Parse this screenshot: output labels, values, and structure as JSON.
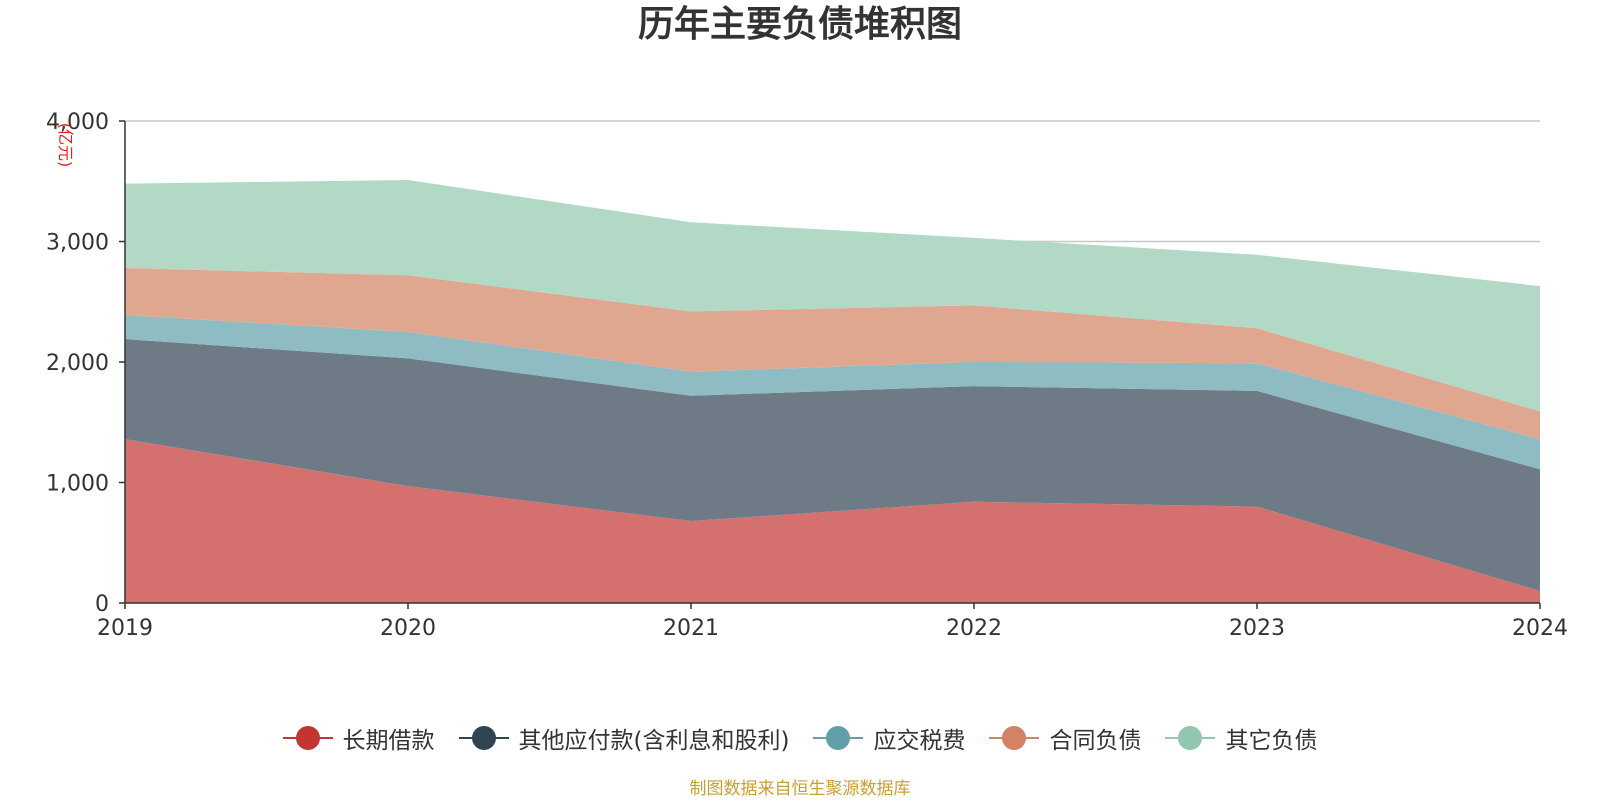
{
  "title": "历年主要负债堆积图",
  "source_note": "制图数据来自恒生聚源数据库",
  "chart_data": {
    "type": "area",
    "stacked": true,
    "title": "历年主要负债堆积图",
    "unit_label": "(亿元)",
    "x": [
      "2019",
      "2020",
      "2021",
      "2022",
      "2023",
      "2024"
    ],
    "ylim": [
      0,
      4000
    ],
    "yticks": [
      0,
      1000,
      2000,
      3000,
      4000
    ],
    "ytick_labels": [
      "0",
      "1,000",
      "2,000",
      "3,000",
      "4,000"
    ],
    "grid": true,
    "legend_position": "bottom",
    "series": [
      {
        "name": "长期借款",
        "color": "#c23531",
        "fill": "#d4716e",
        "values": [
          1360,
          970,
          680,
          840,
          800,
          100
        ]
      },
      {
        "name": "其他应付款(含利息和股利)",
        "color": "#2f4554",
        "fill": "#6e7b86",
        "values": [
          830,
          1060,
          1040,
          960,
          960,
          1010
        ]
      },
      {
        "name": "应交税费",
        "color": "#61a0a8",
        "fill": "#8fbcc2",
        "values": [
          200,
          220,
          200,
          200,
          230,
          250
        ]
      },
      {
        "name": "合同负债",
        "color": "#d48265",
        "fill": "#e0a790",
        "values": [
          390,
          470,
          500,
          470,
          290,
          230
        ]
      },
      {
        "name": "其它负债",
        "color": "#91c7ae",
        "fill": "#b2d9c6",
        "values": [
          700,
          790,
          740,
          560,
          610,
          1040
        ]
      }
    ]
  }
}
